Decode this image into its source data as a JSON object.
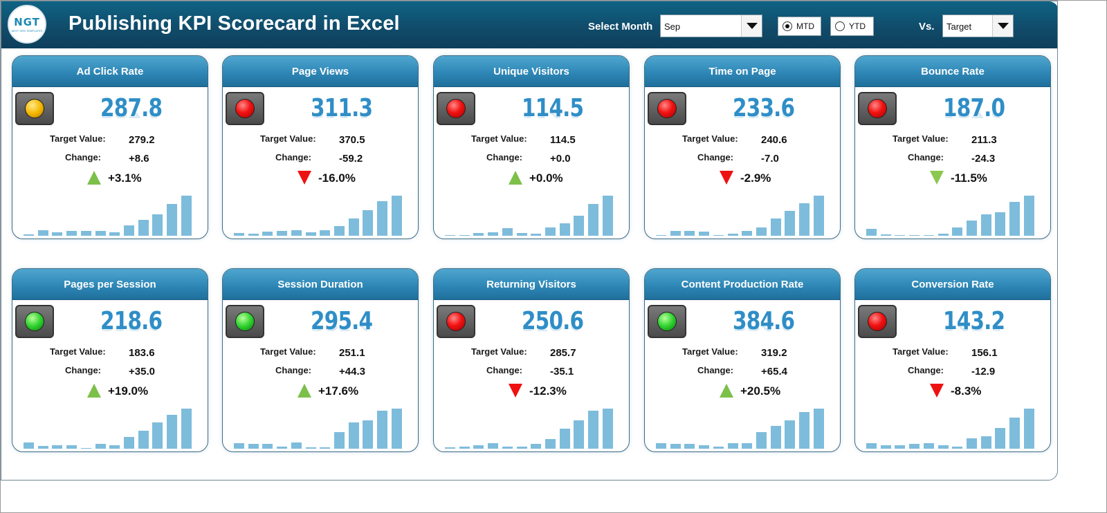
{
  "header": {
    "logo_text": "NGT",
    "logo_sub": "NEXT GEN TEMPLATES",
    "title": "Publishing KPI Scorecard in Excel",
    "select_month_label": "Select Month",
    "month_value": "Sep",
    "mtd_label": "MTD",
    "ytd_label": "YTD",
    "mtd_selected": true,
    "vs_label": "Vs.",
    "vs_value": "Target"
  },
  "labels": {
    "target": "Target Value:",
    "change": "Change:"
  },
  "colors": {
    "header_bg": "#114c6b",
    "card_header": "#2e87b6",
    "value_blue": "#2f8ec7",
    "bar": "#7ebcdb",
    "up_green": "#7cc04a",
    "down_red": "#ee1111"
  },
  "cards": [
    {
      "name": "Ad Click Rate",
      "value": "287.8",
      "target": "279.2",
      "change": "+8.6",
      "pct": "+3.1%",
      "light": "yellow",
      "arrow": "up",
      "bars": [
        0.2,
        1.0,
        0.6,
        0.8,
        0.9,
        0.8,
        0.6,
        1.8,
        2.8,
        3.8,
        5.6,
        7.0
      ]
    },
    {
      "name": "Page Views",
      "value": "311.3",
      "target": "370.5",
      "change": "-59.2",
      "pct": "-16.0%",
      "light": "red",
      "arrow": "down-red",
      "bars": [
        0.5,
        0.4,
        0.7,
        0.9,
        1.0,
        0.6,
        1.0,
        1.7,
        3.0,
        4.5,
        6.0,
        7.0
      ]
    },
    {
      "name": "Unique Visitors",
      "value": "114.5",
      "target": "114.5",
      "change": "+0.0",
      "pct": "+0.0%",
      "light": "red",
      "arrow": "up",
      "bars": [
        0.1,
        0.1,
        0.5,
        0.6,
        1.3,
        0.5,
        0.4,
        1.4,
        2.2,
        3.5,
        5.6,
        7.0
      ]
    },
    {
      "name": "Time on Page",
      "value": "233.6",
      "target": "240.6",
      "change": "-7.0",
      "pct": "-2.9%",
      "light": "red",
      "arrow": "down-red",
      "bars": [
        0.1,
        0.8,
        0.8,
        0.7,
        0.1,
        0.4,
        0.8,
        1.4,
        3.0,
        4.4,
        5.7,
        7.0
      ]
    },
    {
      "name": "Bounce Rate",
      "value": "187.0",
      "target": "211.3",
      "change": "-24.3",
      "pct": "-11.5%",
      "light": "red",
      "arrow": "down-green",
      "bars": [
        1.2,
        0.3,
        0.1,
        0.1,
        0.1,
        0.4,
        1.4,
        2.7,
        3.7,
        4.1,
        5.9,
        7.0
      ]
    },
    {
      "name": "Pages per Session",
      "value": "218.6",
      "target": "183.6",
      "change": "+35.0",
      "pct": "+19.0%",
      "light": "green",
      "arrow": "up",
      "bars": [
        1.1,
        0.5,
        0.6,
        0.6,
        0.1,
        0.8,
        0.6,
        2.1,
        3.1,
        4.6,
        5.9,
        7.0
      ]
    },
    {
      "name": "Session Duration",
      "value": "295.4",
      "target": "251.1",
      "change": "+44.3",
      "pct": "+17.6%",
      "light": "green",
      "arrow": "up",
      "bars": [
        1.0,
        0.8,
        0.8,
        0.4,
        1.1,
        0.3,
        0.3,
        2.9,
        4.6,
        5.0,
        6.6,
        7.0
      ]
    },
    {
      "name": "Returning Visitors",
      "value": "250.6",
      "target": "285.7",
      "change": "-35.1",
      "pct": "-12.3%",
      "light": "red",
      "arrow": "down-red",
      "bars": [
        0.2,
        0.4,
        0.6,
        1.0,
        0.4,
        0.4,
        0.9,
        1.7,
        3.5,
        5.0,
        6.6,
        7.0
      ]
    },
    {
      "name": "Content Production Rate",
      "value": "384.6",
      "target": "319.2",
      "change": "+65.4",
      "pct": "+20.5%",
      "light": "green",
      "arrow": "up",
      "bars": [
        1.0,
        0.9,
        0.9,
        0.6,
        0.4,
        1.0,
        1.0,
        2.9,
        4.0,
        4.9,
        6.4,
        7.0
      ]
    },
    {
      "name": "Conversion Rate",
      "value": "143.2",
      "target": "156.1",
      "change": "-12.9",
      "pct": "-8.3%",
      "light": "red",
      "arrow": "down-red",
      "bars": [
        1.0,
        0.6,
        0.6,
        0.8,
        1.0,
        0.6,
        0.4,
        1.8,
        2.2,
        3.6,
        5.4,
        7.0
      ]
    }
  ]
}
